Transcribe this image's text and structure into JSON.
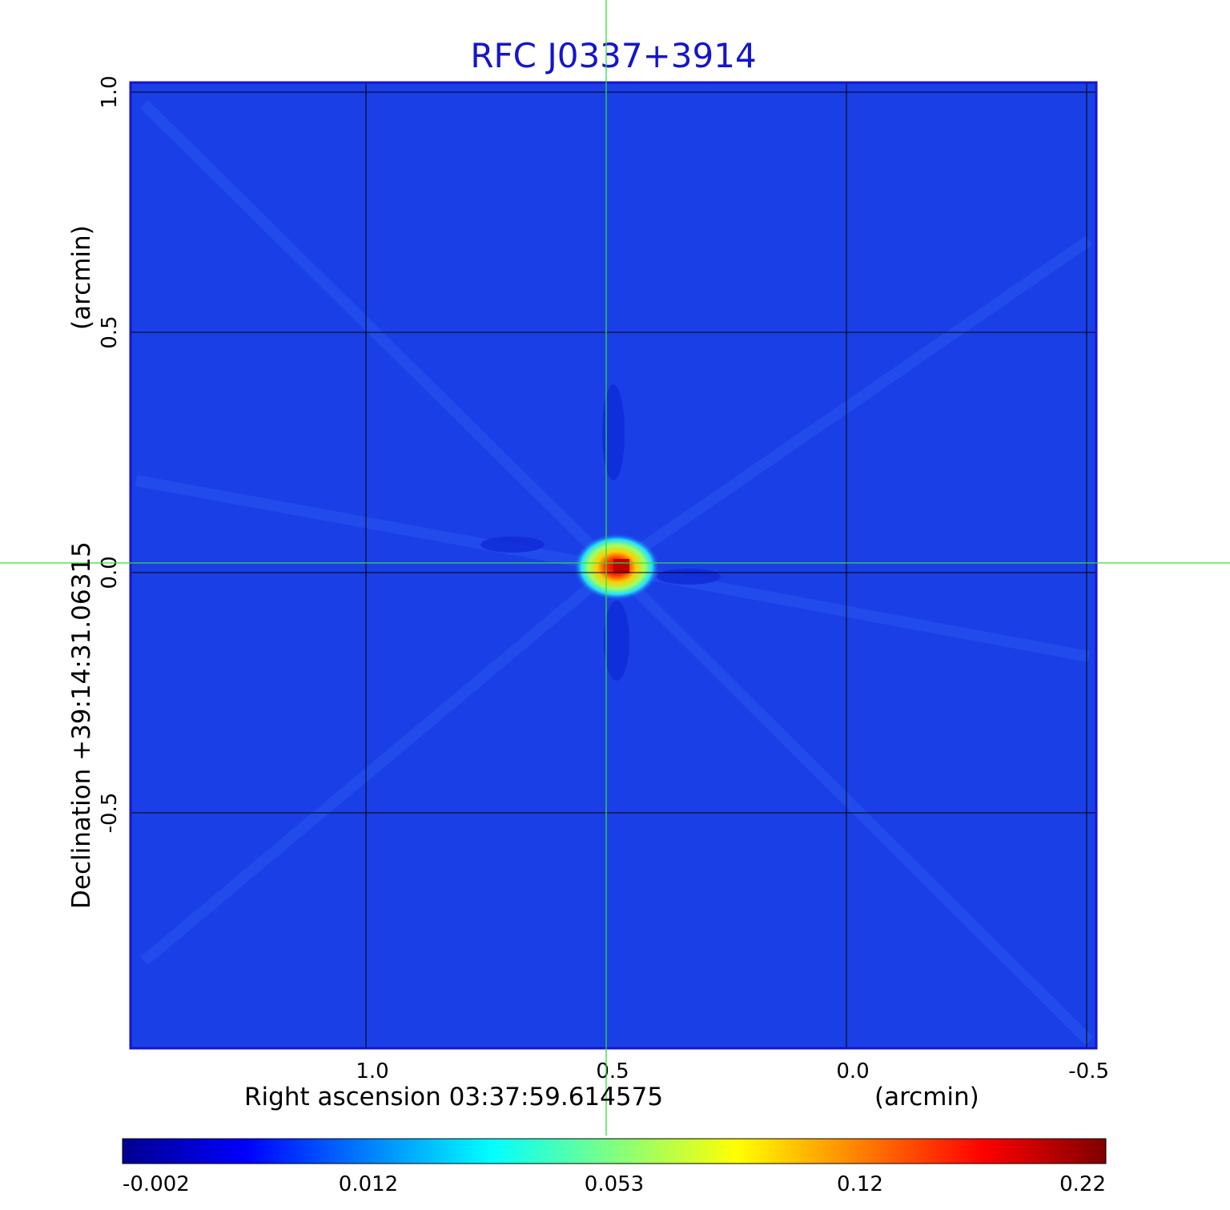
{
  "chart_data": {
    "type": "heatmap",
    "title": "RFC J0337+3914",
    "xlabel": "Right ascension  03:37:59.614575",
    "xunit": "(arcmin)",
    "ylabel": "Declination  +39:14:31.06315",
    "yunit": "(arcmin)",
    "x_ticks": [
      {
        "label": "1.0",
        "value": 1.0
      },
      {
        "label": "0.5",
        "value": 0.5
      },
      {
        "label": "0.0",
        "value": 0.0
      },
      {
        "label": "-0.5",
        "value": -0.5
      }
    ],
    "y_ticks": [
      {
        "label": "1.0",
        "value": 1.0
      },
      {
        "label": "0.5",
        "value": 0.5
      },
      {
        "label": "0.0",
        "value": 0.0
      },
      {
        "label": "-0.5",
        "value": -0.5
      }
    ],
    "xlim": [
      1.49,
      -0.52
    ],
    "ylim": [
      -0.99,
      1.02
    ],
    "grid": true,
    "crosshair": {
      "x": 0.5,
      "y": 0.02,
      "color": "#33dd33"
    },
    "peak": {
      "x": 0.48,
      "y": 0.01,
      "value": 0.22
    },
    "colorbar": {
      "position": "bottom",
      "labels": [
        "-0.002",
        "0.012",
        "0.053",
        "0.12",
        "0.22"
      ],
      "colors": [
        "#00008f",
        "#0000ff",
        "#0080ff",
        "#00ffff",
        "#80ff80",
        "#ffff00",
        "#ff8000",
        "#ff0000",
        "#800000"
      ]
    },
    "background_color": "#1a3fe6"
  }
}
